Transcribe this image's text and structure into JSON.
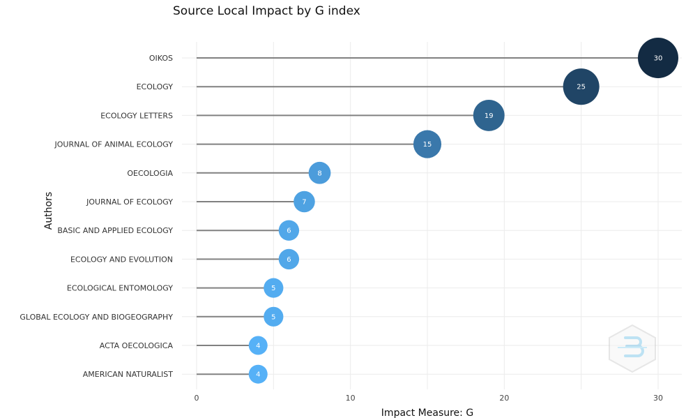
{
  "chart_data": {
    "type": "scatter",
    "subtype": "lollipop",
    "title": "Source Local Impact by G index",
    "xlabel": "Impact Measure: G",
    "ylabel": "Authors",
    "xlim": [
      0,
      31.5
    ],
    "xticks": [
      0,
      10,
      20,
      30
    ],
    "grid": true,
    "categories": [
      "OIKOS",
      "ECOLOGY",
      "ECOLOGY LETTERS",
      "JOURNAL OF ANIMAL ECOLOGY",
      "OECOLOGIA",
      "JOURNAL OF ECOLOGY",
      "BASIC AND APPLIED ECOLOGY",
      "ECOLOGY AND EVOLUTION",
      "ECOLOGICAL ENTOMOLOGY",
      "GLOBAL ECOLOGY AND BIOGEOGRAPHY",
      "ACTA OECOLOGICA",
      "AMERICAN NATURALIST"
    ],
    "values": [
      30,
      25,
      19,
      15,
      8,
      7,
      6,
      6,
      5,
      5,
      4,
      4
    ],
    "colors": {
      "low": "#56b1f7",
      "high": "#132b43",
      "stem": "#808080",
      "grid": "#ebebeb"
    }
  },
  "watermark": "bibliometrix-logo"
}
